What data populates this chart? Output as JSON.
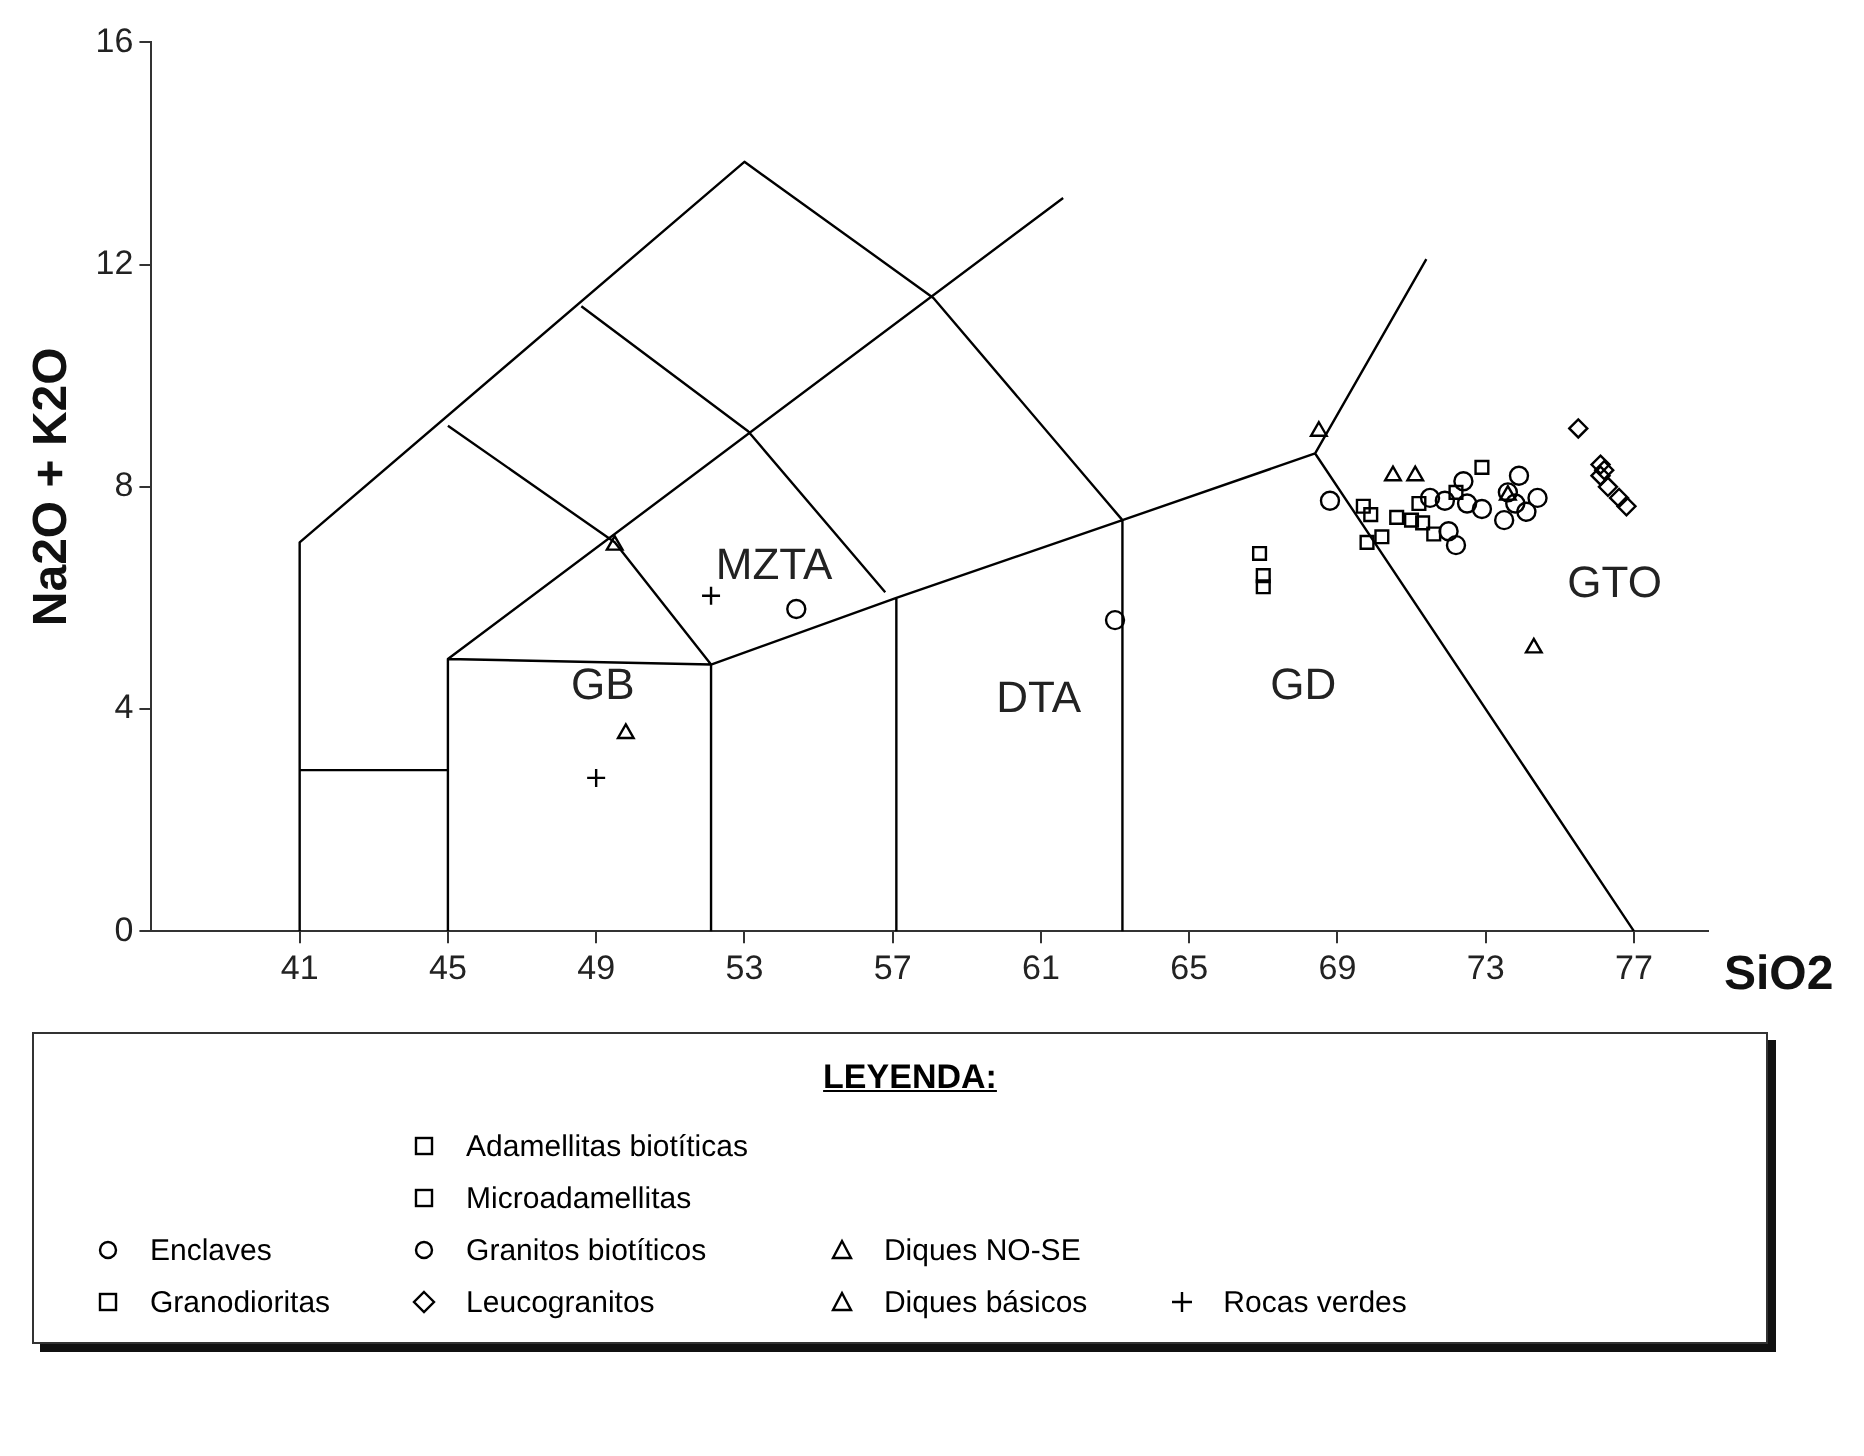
{
  "chart_data": {
    "type": "scatter",
    "xlabel": "SiO2",
    "ylabel": "Na2O + K2O",
    "legend_title": "LEYENDA:",
    "legend": "bottom",
    "grid": false,
    "xlim": [
      37,
      79
    ],
    "xticks": [
      41,
      45,
      49,
      53,
      57,
      61,
      65,
      69,
      73,
      77
    ],
    "ylim": [
      0,
      16
    ],
    "yticks": [
      0,
      4,
      8,
      12,
      16
    ],
    "annotations": [
      "GB",
      "MZTA",
      "DTA",
      "GD",
      "GTO"
    ],
    "series": [
      {
        "name": "Enclaves",
        "color": "#000000",
        "marker": "circle",
        "x": [
          54.4,
          63.0,
          68.8,
          72.4,
          72.9
        ],
        "values": [
          5.8,
          5.6,
          7.75,
          8.1,
          7.6
        ]
      },
      {
        "name": "Granodioritas",
        "color": "#000000",
        "marker": "square",
        "x": [
          66.9,
          67.0,
          67.0
        ],
        "values": [
          6.8,
          6.4,
          6.2
        ]
      },
      {
        "name": "Adamellitas biotíticas",
        "color": "#000000",
        "marker": "square",
        "x": [
          69.7,
          69.8
        ],
        "values": [
          7.65,
          7.0
        ]
      },
      {
        "name": "Microadamellitas",
        "color": "#000000",
        "marker": "square",
        "x": [
          69.9,
          70.2,
          70.6,
          71.0,
          71.3,
          71.2,
          71.6,
          72.2,
          72.9
        ],
        "values": [
          7.5,
          7.1,
          7.45,
          7.4,
          7.35,
          7.7,
          7.15,
          7.9,
          8.35
        ]
      },
      {
        "name": "Granitos biotíticos",
        "color": "#000000",
        "marker": "circle",
        "x": [
          71.5,
          71.9,
          72.0,
          72.2,
          72.5,
          73.5,
          73.6,
          73.8,
          73.9,
          74.1,
          74.4
        ],
        "values": [
          7.8,
          7.75,
          7.2,
          6.95,
          7.7,
          7.4,
          7.9,
          7.7,
          8.2,
          7.55,
          7.8
        ]
      },
      {
        "name": "Leucogranitos",
        "color": "#000000",
        "marker": "diamond",
        "x": [
          75.5,
          76.1,
          76.2,
          76.1,
          76.3,
          76.6,
          76.8
        ],
        "values": [
          9.05,
          8.4,
          8.3,
          8.2,
          8.0,
          7.8,
          7.65
        ]
      },
      {
        "name": "Diques NO-SE",
        "color": "#000000",
        "marker": "triangle",
        "x": [
          68.5,
          70.5,
          71.1,
          73.6,
          74.3
        ],
        "values": [
          9.0,
          8.2,
          8.2,
          7.85,
          5.1
        ]
      },
      {
        "name": "Diques básicos",
        "color": "#000000",
        "marker": "triangle",
        "x": [
          49.5,
          49.8
        ],
        "values": [
          6.95,
          3.56
        ]
      },
      {
        "name": "Rocas verdes",
        "color": "#000000",
        "marker": "cross",
        "x": [
          52.1,
          49.0
        ],
        "values": [
          6.04,
          2.76
        ]
      },
      {
        "type": "line",
        "color": "#000000",
        "marker": "none",
        "x": [
          41,
          41,
          53,
          58.1,
          63.2,
          63.2,
          null,
          63.2,
          68.4,
          77,
          null,
          68.4,
          71.4,
          null,
          45,
          45,
          52.1,
          52.1,
          null,
          63.2,
          57.1,
          52.1,
          49.5,
          45,
          null,
          45,
          61.6,
          null,
          48.6,
          53.1,
          56.8,
          null,
          41,
          45,
          null,
          57.1,
          57.1
        ],
        "values": [
          0,
          7,
          13.85,
          11.4,
          7.4,
          0,
          null,
          7.4,
          8.6,
          0,
          null,
          8.6,
          12.1,
          null,
          0,
          4.9,
          4.8,
          0,
          null,
          7.4,
          6.0,
          4.8,
          7.0,
          9.1,
          null,
          4.9,
          13.2,
          null,
          11.25,
          9.0,
          6.1,
          null,
          2.9,
          2.9,
          null,
          6.0,
          0
        ]
      }
    ]
  }
}
